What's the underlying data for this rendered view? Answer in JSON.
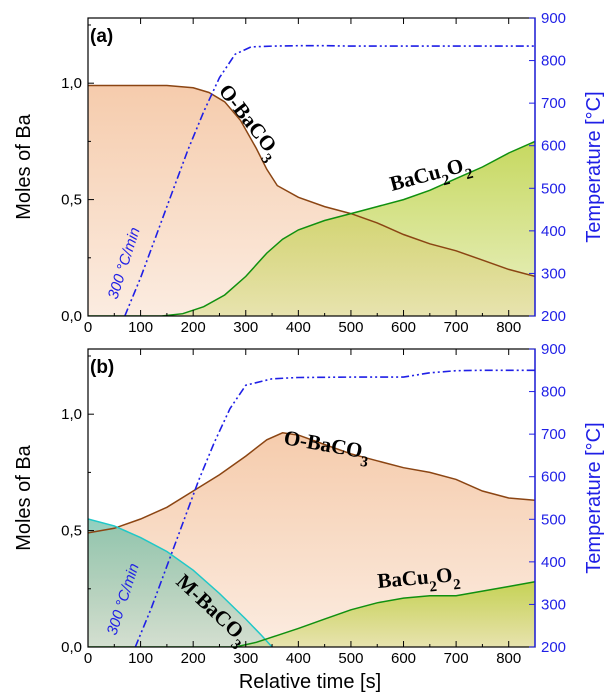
{
  "colors": {
    "o_baco3_line": "#8b4513",
    "o_baco3_fill": "#f5c9a8",
    "bacu2o2_line": "#109010",
    "bacu2o2_fill": "#b9cf3a",
    "m_baco3_line": "#1fc8c8",
    "m_baco3_fill": "#6fbfa8",
    "temperature": "#1f1fe6"
  },
  "axes": {
    "xlabel": "Relative time [s]",
    "ylabel": "Moles of Ba",
    "ylabel_right": "Temperature [°C]",
    "xticks": [
      "0",
      "100",
      "200",
      "300",
      "400",
      "500",
      "600",
      "700",
      "800"
    ],
    "yticks": [
      "0,0",
      "0,5",
      "1,0"
    ],
    "yticks_right": [
      "200",
      "300",
      "400",
      "500",
      "600",
      "700",
      "800",
      "900"
    ]
  },
  "chart_data": [
    {
      "type": "area",
      "panel": "(a)",
      "xlabel": "",
      "ylabel": "Moles of Ba",
      "ylabel_right": "Temperature [°C]",
      "xlim": [
        0,
        850
      ],
      "ylim": [
        0,
        1.28
      ],
      "ylim_right": [
        200,
        900
      ],
      "grid": false,
      "series": [
        {
          "name": "O-BaCO3",
          "axis": "left",
          "x": [
            0,
            50,
            100,
            150,
            200,
            230,
            260,
            290,
            320,
            340,
            360,
            400,
            450,
            500,
            550,
            600,
            650,
            700,
            750,
            800,
            850
          ],
          "values": [
            0.99,
            0.99,
            0.99,
            0.99,
            0.98,
            0.96,
            0.92,
            0.84,
            0.72,
            0.63,
            0.56,
            0.51,
            0.47,
            0.44,
            0.4,
            0.35,
            0.31,
            0.28,
            0.24,
            0.2,
            0.17
          ]
        },
        {
          "name": "BaCu2O2",
          "axis": "left",
          "x": [
            0,
            140,
            180,
            220,
            260,
            300,
            340,
            370,
            400,
            450,
            500,
            550,
            600,
            650,
            700,
            750,
            800,
            850
          ],
          "values": [
            0,
            0,
            0.01,
            0.04,
            0.09,
            0.17,
            0.27,
            0.33,
            0.37,
            0.41,
            0.44,
            0.47,
            0.5,
            0.54,
            0.59,
            0.64,
            0.7,
            0.75
          ]
        },
        {
          "name": "Temperature",
          "axis": "right",
          "style": "dash-dot",
          "x": [
            70,
            100,
            130,
            160,
            190,
            220,
            250,
            280,
            310,
            350,
            400,
            450,
            500,
            600,
            700,
            800,
            850
          ],
          "values": [
            200,
            290,
            390,
            490,
            590,
            680,
            760,
            815,
            832,
            834,
            835,
            835,
            834,
            834,
            834,
            834,
            834
          ]
        }
      ],
      "annotations": [
        {
          "text": "O-BaCO",
          "sub": "3",
          "target": "O-BaCO3"
        },
        {
          "text": "BaCu",
          "sub": "2",
          "text2": "O",
          "sub2": "2",
          "target": "BaCu2O2"
        },
        {
          "text": "300 °C/min",
          "target": "Temperature"
        }
      ]
    },
    {
      "type": "area",
      "panel": "(b)",
      "xlabel": "Relative time [s]",
      "ylabel": "Moles of Ba",
      "ylabel_right": "Temperature [°C]",
      "xlim": [
        0,
        850
      ],
      "ylim": [
        0,
        1.28
      ],
      "ylim_right": [
        200,
        900
      ],
      "grid": false,
      "series": [
        {
          "name": "O-BaCO3",
          "axis": "left",
          "x": [
            0,
            50,
            100,
            150,
            200,
            250,
            300,
            340,
            370,
            400,
            450,
            500,
            550,
            600,
            650,
            700,
            750,
            800,
            850
          ],
          "values": [
            0.49,
            0.51,
            0.55,
            0.6,
            0.67,
            0.74,
            0.82,
            0.89,
            0.92,
            0.91,
            0.87,
            0.83,
            0.8,
            0.77,
            0.75,
            0.72,
            0.67,
            0.64,
            0.63
          ]
        },
        {
          "name": "M-BaCO3",
          "axis": "left",
          "x": [
            0,
            50,
            100,
            150,
            200,
            250,
            300,
            330,
            350
          ],
          "values": [
            0.55,
            0.52,
            0.47,
            0.41,
            0.33,
            0.23,
            0.12,
            0.05,
            0
          ]
        },
        {
          "name": "BaCu2O2",
          "axis": "left",
          "x": [
            0,
            280,
            320,
            360,
            400,
            450,
            500,
            550,
            600,
            650,
            700,
            750,
            800,
            850
          ],
          "values": [
            0,
            0,
            0.02,
            0.05,
            0.08,
            0.12,
            0.16,
            0.19,
            0.21,
            0.22,
            0.22,
            0.24,
            0.26,
            0.28
          ]
        },
        {
          "name": "Temperature",
          "axis": "right",
          "style": "dash-dot",
          "x": [
            90,
            120,
            150,
            180,
            210,
            240,
            270,
            300,
            350,
            400,
            500,
            560,
            600,
            650,
            700,
            750,
            800,
            850
          ],
          "values": [
            200,
            290,
            390,
            490,
            590,
            680,
            760,
            815,
            830,
            833,
            834,
            834,
            834,
            844,
            849,
            850,
            850,
            850
          ]
        }
      ],
      "annotations": [
        {
          "text": "O-BaCO",
          "sub": "3",
          "target": "O-BaCO3"
        },
        {
          "text": "M-BaCO",
          "sub": "3",
          "target": "M-BaCO3"
        },
        {
          "text": "BaCu",
          "sub": "2",
          "text2": "O",
          "sub2": "2",
          "target": "BaCu2O2"
        },
        {
          "text": "300 °C/min",
          "target": "Temperature"
        }
      ]
    }
  ]
}
